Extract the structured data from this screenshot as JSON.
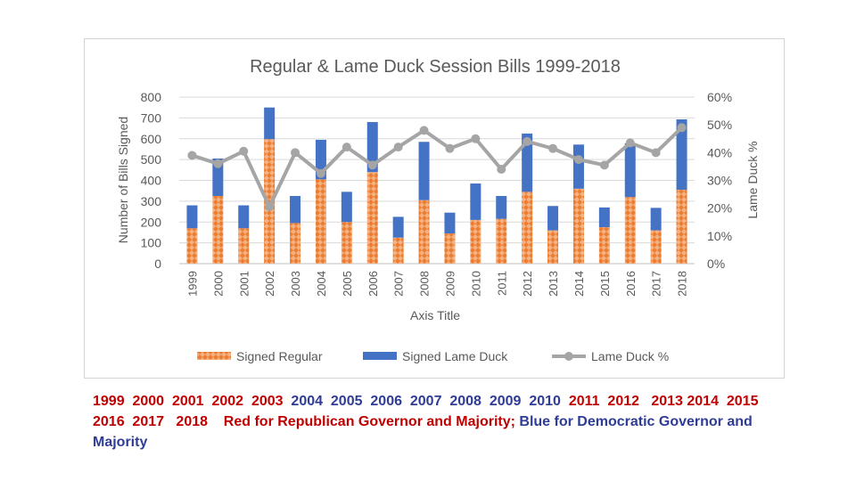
{
  "chart_data": {
    "type": "bar",
    "title": "Regular & Lame Duck Session Bills 1999-2018",
    "xlabel": "Axis Title",
    "ylabel": "Number of Bills Signed",
    "y2label": "Lame Duck %",
    "ylim": [
      0,
      800
    ],
    "y2lim": [
      0,
      60
    ],
    "yticks": [
      "0",
      "100",
      "200",
      "300",
      "400",
      "500",
      "600",
      "700",
      "800"
    ],
    "y2ticks": [
      "0%",
      "10%",
      "20%",
      "30%",
      "40%",
      "50%",
      "60%"
    ],
    "categories": [
      "1999",
      "2000",
      "2001",
      "2002",
      "2003",
      "2004",
      "2005",
      "2006",
      "2007",
      "2008",
      "2009",
      "2010",
      "2011",
      "2012",
      "2013",
      "2014",
      "2015",
      "2016",
      "2017",
      "2018"
    ],
    "series": [
      {
        "name": "Signed Regular",
        "kind": "bar",
        "color": "#ED7D31",
        "values": [
          170,
          325,
          170,
          598,
          195,
          405,
          200,
          440,
          125,
          305,
          145,
          210,
          215,
          345,
          160,
          360,
          175,
          320,
          160,
          355
        ]
      },
      {
        "name": "Signed Lame Duck",
        "kind": "bar",
        "color": "#4472C4",
        "values": [
          110,
          180,
          110,
          152,
          130,
          190,
          145,
          240,
          100,
          280,
          100,
          175,
          110,
          280,
          117,
          212,
          95,
          258,
          108,
          338
        ]
      },
      {
        "name": "Lame Duck %",
        "kind": "line",
        "axis": "y2",
        "color": "#A5A5A5",
        "values": [
          39,
          36,
          40.5,
          20.5,
          40,
          32.5,
          42,
          35.5,
          42,
          48,
          41.5,
          45,
          34,
          44,
          41.5,
          37.5,
          35.5,
          43.5,
          40,
          49
        ]
      }
    ],
    "legend": "bottom"
  },
  "caption": [
    {
      "text": "1999  2000  2001  2002  2003  ",
      "color": "#C00000"
    },
    {
      "text": "2004  2005  2006  2007  2008  2009  2010  ",
      "color": "#2F3C96"
    },
    {
      "text": "2011  2012   2013 2014  2015   2016  2017   2018    Red for Republican Governor and Majority; ",
      "color": "#C00000"
    },
    {
      "text": "Blue for Democratic Governor and Majority",
      "color": "#2F3C96"
    }
  ]
}
